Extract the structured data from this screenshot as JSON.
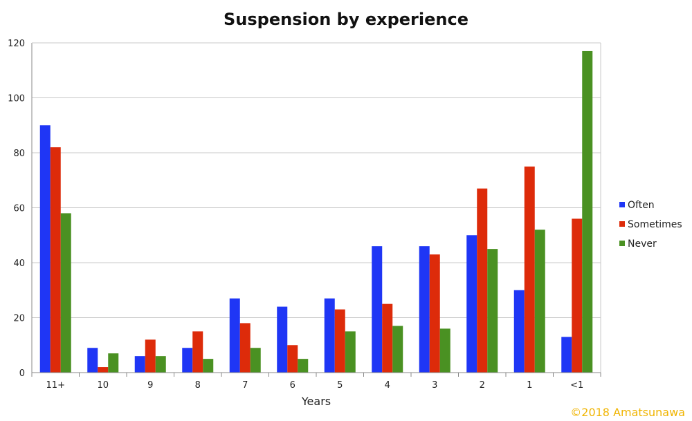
{
  "chart_data": {
    "type": "bar",
    "title": "Suspension by experience",
    "xlabel": "Years",
    "ylabel": "",
    "ylim": [
      0,
      120
    ],
    "yticks": [
      0,
      20,
      40,
      60,
      80,
      100,
      120
    ],
    "grid": true,
    "legend_position": "right",
    "categories": [
      "11+",
      "10",
      "9",
      "8",
      "7",
      "6",
      "5",
      "4",
      "3",
      "2",
      "1",
      "<1"
    ],
    "series": [
      {
        "name": "Often",
        "color": "#1f36f5",
        "values": [
          90,
          9,
          6,
          9,
          27,
          24,
          27,
          46,
          46,
          50,
          30,
          13
        ]
      },
      {
        "name": "Sometimes",
        "color": "#dd2b0a",
        "values": [
          82,
          2,
          12,
          15,
          18,
          10,
          23,
          25,
          43,
          67,
          75,
          56
        ]
      },
      {
        "name": "Never",
        "color": "#4a9122",
        "values": [
          58,
          7,
          6,
          5,
          9,
          5,
          15,
          17,
          16,
          45,
          52,
          117
        ]
      }
    ]
  },
  "copyright": {
    "text": "©2018 Amatsunawa",
    "color": "#f0b400"
  }
}
